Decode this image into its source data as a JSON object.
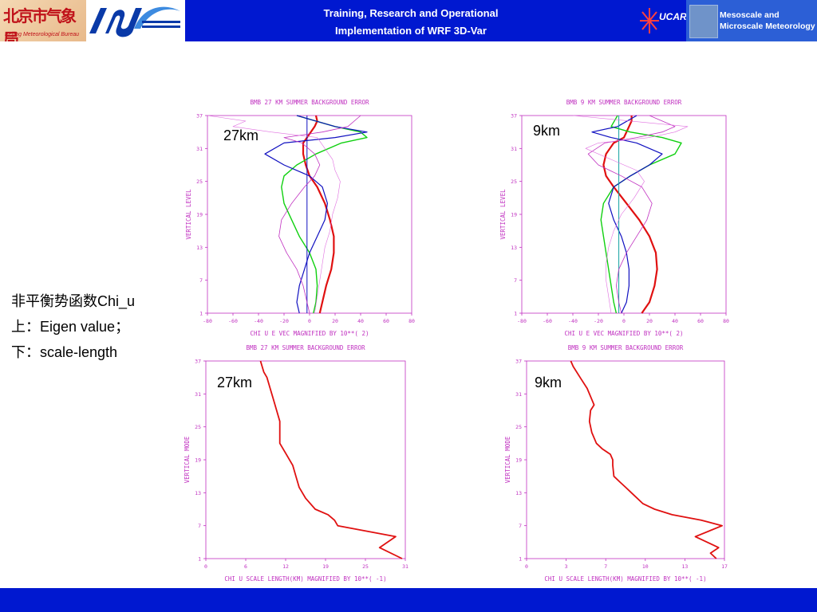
{
  "header": {
    "title_line1": "Training, Research and Operational",
    "title_line2": "Implementation of WRF 3D-Var",
    "bmb_logo_cn": "北京市气象局",
    "bmb_logo_en": "Beijing Meteorological Bureau",
    "ucar_logo": "UCAR",
    "mmm_logo_line1": "Mesoscale and",
    "mmm_logo_line2": "Microscale Meteorology"
  },
  "side_text": {
    "line1": "非平衡势函数Chi_u",
    "line2": "上：Eigen value；",
    "line3": "下：scale-length"
  },
  "colors": {
    "title_bar": "#0018d0",
    "axis": "#c030c0",
    "red": "#e01010",
    "green": "#10d010",
    "blue": "#1010c0",
    "magenta": "#c030c0"
  },
  "chart_data": [
    {
      "id": "tl",
      "type": "line",
      "title": "BMB 27 KM SUMMER BACKGROUND ERROR",
      "xlabel": "CHI U E VEC MAGNIFIED BY 10**( 2)",
      "ylabel": "VERTICAL LEVEL",
      "resolution_label": "27km",
      "xlim": [
        -80,
        80
      ],
      "ylim": [
        1,
        37
      ],
      "xticks": [
        "-80",
        "-60",
        "-40",
        "-20",
        "0",
        "20",
        "40",
        "60",
        "80"
      ],
      "yticks": [
        "1",
        "7",
        "13",
        "19",
        "25",
        "31",
        "37"
      ],
      "series": [
        {
          "color": "#e01010",
          "width": 2.2,
          "x": [
            8,
            10,
            13,
            17,
            19,
            19,
            16,
            12,
            6,
            0,
            -3,
            -5,
            -5,
            -2,
            4,
            6,
            5
          ],
          "y": [
            1,
            3,
            6,
            9,
            12,
            15,
            18,
            21,
            24,
            26,
            28,
            30,
            32,
            33,
            35,
            36,
            37
          ]
        },
        {
          "color": "#10d010",
          "width": 1.4,
          "x": [
            3,
            5,
            6,
            5,
            0,
            -8,
            -14,
            -20,
            -22,
            -20,
            -10,
            5,
            25,
            45,
            40,
            20,
            -10
          ],
          "y": [
            1,
            3,
            6,
            9,
            12,
            15,
            18,
            21,
            24,
            26,
            28,
            30,
            32,
            33,
            34,
            35,
            37
          ]
        },
        {
          "color": "#1010c0",
          "width": 1.2,
          "x": [
            -8,
            -10,
            -8,
            -4,
            0,
            6,
            12,
            14,
            10,
            0,
            -20,
            -35,
            -20,
            20,
            45,
            20,
            -10
          ],
          "y": [
            1,
            3,
            6,
            9,
            12,
            15,
            18,
            21,
            24,
            26,
            28,
            30,
            32,
            33,
            34,
            35,
            37
          ]
        },
        {
          "color": "#1010c0",
          "width": 1.0,
          "x": [
            -2,
            -2,
            -2,
            -2,
            -2,
            -2,
            -2,
            -2,
            -2,
            -2,
            -2,
            -2,
            -2,
            -2,
            -2
          ],
          "y": [
            1,
            4,
            7,
            10,
            13,
            16,
            19,
            22,
            25,
            28,
            31,
            33,
            34,
            35,
            37
          ]
        },
        {
          "color": "#c030c0",
          "width": 0.8,
          "x": [
            0,
            -2,
            -5,
            -10,
            -18,
            -24,
            -22,
            -14,
            -4,
            4,
            8,
            4,
            -6,
            -20,
            10,
            30,
            40
          ],
          "y": [
            1,
            3,
            6,
            9,
            12,
            15,
            18,
            21,
            24,
            26,
            28,
            30,
            32,
            33,
            34,
            35,
            37
          ]
        },
        {
          "color": "#e070e0",
          "width": 0.6,
          "x": [
            4,
            6,
            8,
            10,
            12,
            16,
            18,
            22,
            24,
            20,
            18,
            12,
            6,
            -30,
            -60,
            -50,
            -80
          ],
          "y": [
            1,
            4,
            7,
            10,
            13,
            16,
            19,
            22,
            25,
            27,
            29,
            31,
            33,
            34,
            35,
            36,
            37
          ]
        }
      ]
    },
    {
      "id": "tr",
      "type": "line",
      "title": "BMB 9 KM SUMMER BACKGROUND ERROR",
      "xlabel": "CHI U E VEC MAGNIFIED BY 10**( 2)",
      "ylabel": "VERTICAL LEVEL",
      "resolution_label": "9km",
      "xlim": [
        -80,
        80
      ],
      "ylim": [
        1,
        37
      ],
      "xticks": [
        "-80",
        "-60",
        "-40",
        "-20",
        "0",
        "20",
        "40",
        "60",
        "80"
      ],
      "yticks": [
        "1",
        "7",
        "13",
        "19",
        "25",
        "31",
        "37"
      ],
      "series": [
        {
          "color": "#e01010",
          "width": 2.2,
          "x": [
            14,
            20,
            24,
            26,
            25,
            20,
            12,
            2,
            -8,
            -14,
            -16,
            -14,
            -8,
            0,
            4,
            6,
            6
          ],
          "y": [
            1,
            3,
            6,
            9,
            12,
            15,
            18,
            21,
            24,
            26,
            28,
            30,
            32,
            33,
            35,
            36,
            37
          ]
        },
        {
          "color": "#10d010",
          "width": 1.4,
          "x": [
            -6,
            -8,
            -10,
            -12,
            -14,
            -16,
            -18,
            -16,
            -8,
            5,
            20,
            40,
            45,
            30,
            5,
            -10,
            -5
          ],
          "y": [
            1,
            3,
            6,
            9,
            12,
            15,
            18,
            21,
            24,
            26,
            28,
            30,
            32,
            33,
            34,
            35,
            37
          ]
        },
        {
          "color": "#1010c0",
          "width": 1.2,
          "x": [
            -2,
            2,
            4,
            4,
            2,
            -2,
            -8,
            -12,
            -8,
            5,
            20,
            30,
            10,
            -10,
            -25,
            -5,
            10
          ],
          "y": [
            1,
            3,
            6,
            9,
            12,
            15,
            18,
            21,
            24,
            26,
            28,
            30,
            32,
            33,
            34,
            35,
            37
          ]
        },
        {
          "color": "#10a0a0",
          "width": 1.0,
          "x": [
            -4,
            -4,
            -4,
            -4,
            -4,
            -4,
            -4,
            -4,
            -4,
            -4,
            -4,
            -4,
            -4,
            -4
          ],
          "y": [
            1,
            4,
            7,
            10,
            13,
            16,
            19,
            22,
            25,
            28,
            31,
            33,
            35,
            37
          ]
        },
        {
          "color": "#c030c0",
          "width": 0.8,
          "x": [
            -2,
            -4,
            -6,
            -4,
            2,
            10,
            18,
            22,
            14,
            -2,
            -20,
            -28,
            -15,
            10,
            30,
            40,
            20
          ],
          "y": [
            1,
            3,
            6,
            9,
            12,
            15,
            18,
            21,
            24,
            26,
            28,
            30,
            32,
            33,
            34,
            35,
            37
          ]
        },
        {
          "color": "#e070e0",
          "width": 0.6,
          "x": [
            -10,
            -12,
            -14,
            -14,
            -12,
            -8,
            -2,
            8,
            16,
            10,
            -10,
            -30,
            -20,
            20,
            40,
            50,
            -40
          ],
          "y": [
            1,
            4,
            7,
            10,
            13,
            16,
            19,
            22,
            25,
            27,
            29,
            31,
            32,
            33,
            34,
            35,
            37
          ]
        }
      ]
    },
    {
      "id": "bl",
      "type": "line",
      "title": "BMB 27 KM SUMMER BACKGROUND ERROR",
      "xlabel": "CHI U SCALE LENGTH(KM) MAGNIFIED BY 10**( -1)",
      "ylabel": "VERTICAL MODE",
      "resolution_label": "27km",
      "xlim": [
        0,
        31
      ],
      "ylim": [
        1,
        37
      ],
      "xticks": [
        "0",
        "6",
        "12",
        "19",
        "25",
        "31"
      ],
      "yticks": [
        "1",
        "7",
        "13",
        "19",
        "25",
        "31",
        "37"
      ],
      "series": [
        {
          "color": "#e01010",
          "width": 1.8,
          "x": [
            30.5,
            27.0,
            29.5,
            20.5,
            20.0,
            19.0,
            17.0,
            15.5,
            14.5,
            14.0,
            13.5,
            12.5,
            11.5,
            11.5,
            11.5,
            11.0,
            10.5,
            10.0,
            9.5,
            9.0,
            8.5
          ],
          "y": [
            1,
            3,
            5,
            7,
            8,
            9,
            10,
            12,
            14,
            16,
            18,
            20,
            22,
            24,
            26,
            28,
            30,
            32,
            34,
            35,
            37
          ]
        }
      ]
    },
    {
      "id": "br",
      "type": "line",
      "title": "BMB 9 KM SUMMER BACKGROUND ERROR",
      "xlabel": "CHI U SCALE LENGTH(KM) MAGNIFIED BY 10**( -1)",
      "ylabel": "VERTICAL MODE",
      "resolution_label": "9km",
      "xlim": [
        0,
        17
      ],
      "ylim": [
        1,
        37
      ],
      "xticks": [
        "0",
        "3",
        "7",
        "10",
        "13",
        "17"
      ],
      "yticks": [
        "1",
        "7",
        "13",
        "19",
        "25",
        "31",
        "37"
      ],
      "series": [
        {
          "color": "#e01010",
          "width": 1.8,
          "x": [
            16.3,
            15.8,
            16.5,
            14.5,
            16.8,
            15.0,
            12.5,
            11.0,
            10.0,
            9.5,
            9.0,
            8.5,
            8.0,
            7.5,
            7.4,
            7.4,
            7.2,
            6.5,
            6.0,
            5.6,
            5.4,
            5.5,
            5.8,
            5.6,
            5.2,
            4.6,
            4.0,
            3.8
          ],
          "y": [
            1,
            2,
            3,
            5,
            7,
            8,
            9,
            10,
            11,
            12,
            13,
            14,
            15,
            16,
            18,
            19,
            20,
            21,
            22,
            24,
            26,
            28,
            29,
            30,
            32,
            34,
            36,
            37
          ]
        }
      ]
    }
  ]
}
